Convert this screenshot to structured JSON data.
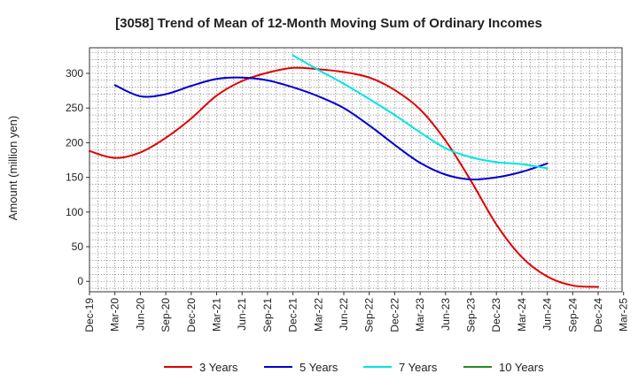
{
  "chart_data": {
    "type": "line",
    "title": "[3058]  Trend of Mean of 12-Month Moving Sum of Ordinary Incomes",
    "xlabel": "",
    "ylabel": "Amount (million yen)",
    "ylim": [
      -15,
      337
    ],
    "yticks": [
      0,
      50,
      100,
      150,
      200,
      250,
      300
    ],
    "categories": [
      "Dec-19",
      "Mar-20",
      "Jun-20",
      "Sep-20",
      "Dec-20",
      "Mar-21",
      "Jun-21",
      "Sep-21",
      "Dec-21",
      "Mar-22",
      "Jun-22",
      "Sep-22",
      "Dec-22",
      "Mar-23",
      "Jun-23",
      "Sep-23",
      "Dec-23",
      "Mar-24",
      "Jun-24",
      "Sep-24",
      "Dec-24",
      "Mar-25"
    ],
    "grid": true,
    "series": [
      {
        "name": "3 Years",
        "color": "#e00000",
        "values": [
          188,
          178,
          186,
          207,
          235,
          268,
          289,
          301,
          308,
          306,
          302,
          294,
          276,
          248,
          203,
          145,
          82,
          35,
          7,
          -6,
          -8,
          null
        ]
      },
      {
        "name": "5 Years",
        "color": "#0000cc",
        "values": [
          null,
          283,
          267,
          270,
          282,
          292,
          294,
          290,
          280,
          267,
          250,
          225,
          197,
          171,
          154,
          147,
          150,
          158,
          170,
          null,
          null,
          null
        ]
      },
      {
        "name": "7 Years",
        "color": "#00e5e5",
        "values": [
          null,
          null,
          null,
          null,
          null,
          null,
          null,
          null,
          326,
          305,
          285,
          263,
          240,
          215,
          192,
          179,
          172,
          169,
          163,
          null,
          null,
          null
        ]
      },
      {
        "name": "10 Years",
        "color": "#228B22",
        "values": [
          null,
          null,
          null,
          null,
          null,
          null,
          null,
          null,
          null,
          null,
          null,
          null,
          null,
          null,
          null,
          null,
          null,
          null,
          null,
          null,
          null,
          null
        ]
      }
    ],
    "series_x_offset": {
      "3 Years": 0,
      "5 Years": 0,
      "7 Years": 0
    },
    "legend_position": "bottom"
  }
}
